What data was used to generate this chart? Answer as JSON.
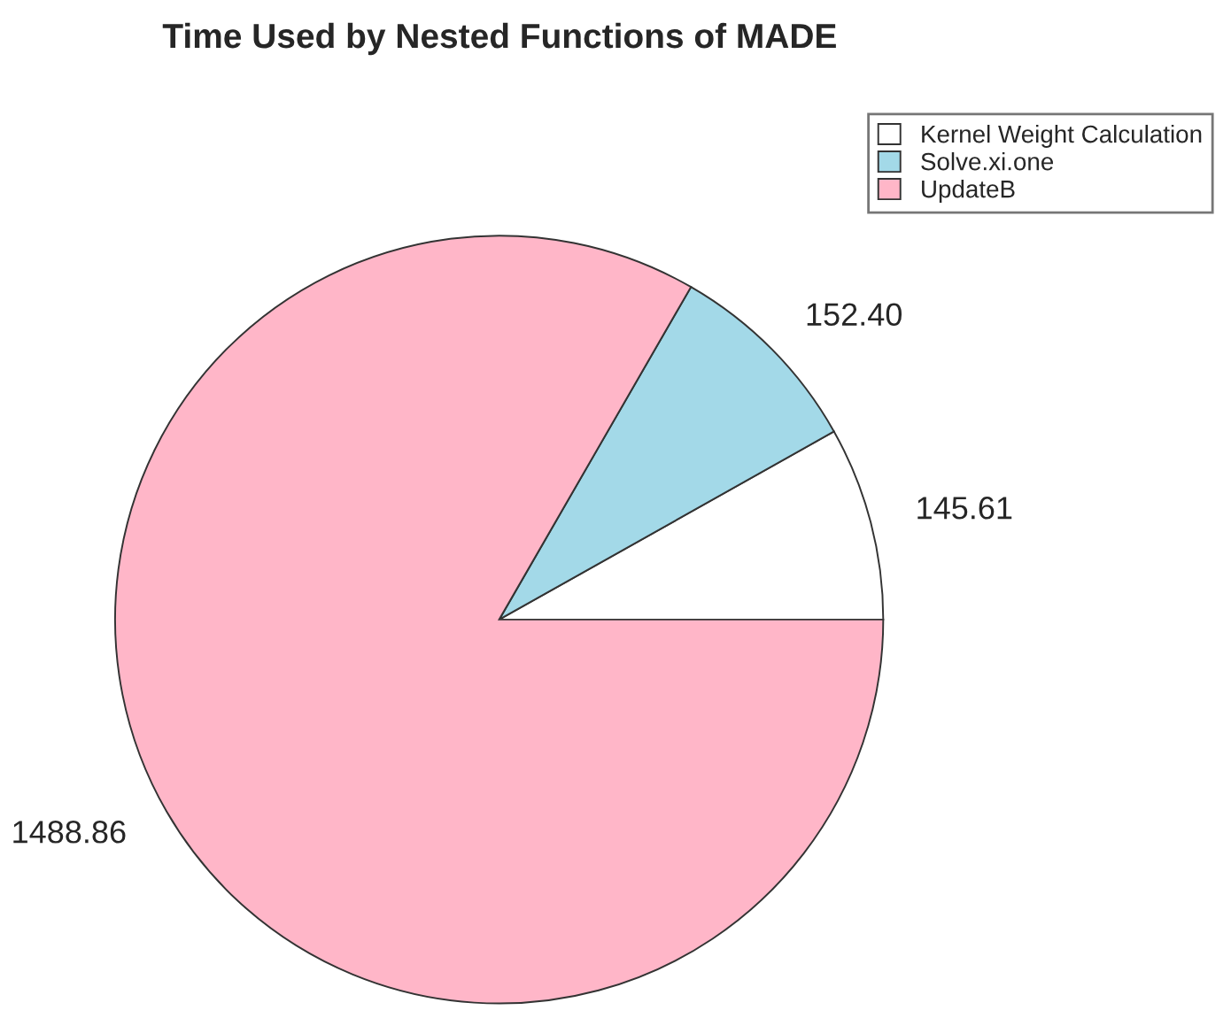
{
  "chart_data": {
    "type": "pie",
    "title": "Time Used by Nested Functions of MADE",
    "categories": [
      "Kernel Weight Calculation",
      "Solve.xi.one",
      "UpdateB"
    ],
    "values": [
      145.61,
      152.4,
      1488.86
    ],
    "colors": [
      "#ffffff",
      "#a3d9e8",
      "#ffb6c8"
    ],
    "value_labels": [
      "145.61",
      "152.40",
      "1488.86"
    ],
    "legend": "top right"
  }
}
